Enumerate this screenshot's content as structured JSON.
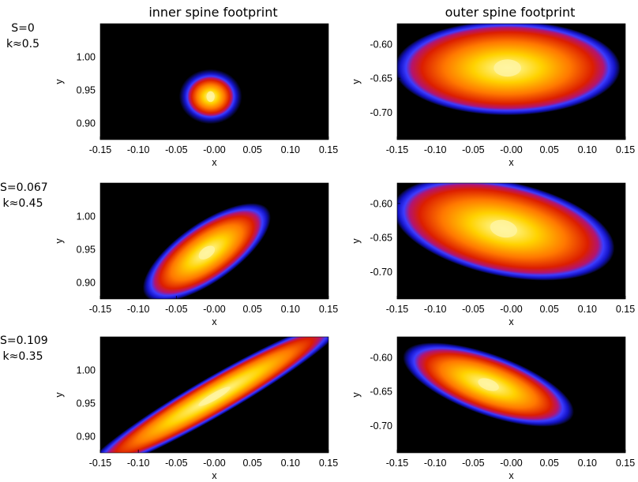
{
  "column_titles": [
    "inner spine footprint",
    "outer spine footprint"
  ],
  "row_labels": [
    {
      "s": "S=0",
      "k": "k≈0.5"
    },
    {
      "s": "S=0.067",
      "k": "k≈0.45"
    },
    {
      "s": "S=0.109",
      "k": "k≈0.35"
    }
  ],
  "chart_data": [
    {
      "type": "heatmap",
      "row": 0,
      "col": 0,
      "title": "inner spine footprint",
      "xlabel": "x",
      "ylabel": "y",
      "xlim": [
        -0.15,
        0.15
      ],
      "ylim": [
        0.875,
        1.05
      ],
      "xticks": [
        "-0.15",
        "-0.10",
        "-0.05",
        "-0.00",
        "0.05",
        "0.10",
        "0.15"
      ],
      "yticks": [
        {
          "v": 0.9,
          "label": "0.90"
        },
        {
          "v": 0.95,
          "label": "0.95"
        },
        {
          "v": 1.0,
          "label": "1.00"
        }
      ],
      "peak": {
        "x": -0.005,
        "y": 0.94
      },
      "shape": {
        "type": "round",
        "angle_deg": 0,
        "extent": [
          0.045,
          0.045
        ]
      },
      "colormap": [
        "#000000",
        "#0a0a60",
        "#1414c8",
        "#3c3cff",
        "#b4146e",
        "#dc1e00",
        "#ff7800",
        "#ffd200",
        "#ffffb4"
      ]
    },
    {
      "type": "heatmap",
      "row": 0,
      "col": 1,
      "title": "outer spine footprint",
      "xlabel": "x",
      "ylabel": "y",
      "xlim": [
        -0.15,
        0.15
      ],
      "ylim": [
        -0.74,
        -0.57
      ],
      "xticks": [
        "-0.15",
        "-0.10",
        "-0.05",
        "-0.00",
        "0.05",
        "0.10",
        "0.15"
      ],
      "yticks": [
        {
          "v": -0.7,
          "label": "-0.70"
        },
        {
          "v": -0.65,
          "label": "-0.65"
        },
        {
          "v": -0.6,
          "label": "-0.60"
        }
      ],
      "peak": {
        "x": -0.005,
        "y": -0.635
      },
      "shape": {
        "type": "wide-oval",
        "angle_deg": 0,
        "extent": [
          0.15,
          0.07
        ]
      },
      "colormap": [
        "#000000",
        "#0a0a60",
        "#1414c8",
        "#3c3cff",
        "#b4146e",
        "#dc1e00",
        "#ff7800",
        "#ffd200",
        "#ffffb4"
      ]
    },
    {
      "type": "heatmap",
      "row": 1,
      "col": 0,
      "title": "",
      "xlabel": "x",
      "ylabel": "y",
      "xlim": [
        -0.15,
        0.15
      ],
      "ylim": [
        0.875,
        1.05
      ],
      "xticks": [
        "-0.15",
        "-0.10",
        "-0.05",
        "-0.00",
        "0.05",
        "0.10",
        "0.15"
      ],
      "yticks": [
        {
          "v": 0.9,
          "label": "0.90"
        },
        {
          "v": 0.95,
          "label": "0.95"
        },
        {
          "v": 1.0,
          "label": "1.00"
        }
      ],
      "peak": {
        "x": -0.01,
        "y": 0.945
      },
      "shape": {
        "type": "tilted-oval",
        "angle_deg": 35,
        "extent": [
          0.1,
          0.045
        ]
      },
      "colormap": [
        "#000000",
        "#0a0a60",
        "#1414c8",
        "#3c3cff",
        "#b4146e",
        "#dc1e00",
        "#ff7800",
        "#ffd200",
        "#ffffb4"
      ]
    },
    {
      "type": "heatmap",
      "row": 1,
      "col": 1,
      "title": "",
      "xlabel": "x",
      "ylabel": "y",
      "xlim": [
        -0.15,
        0.15
      ],
      "ylim": [
        -0.74,
        -0.57
      ],
      "xticks": [
        "-0.15",
        "-0.10",
        "-0.05",
        "-0.00",
        "0.05",
        "0.10",
        "0.15"
      ],
      "yticks": [
        {
          "v": -0.7,
          "label": "-0.70"
        },
        {
          "v": -0.65,
          "label": "-0.65"
        },
        {
          "v": -0.6,
          "label": "-0.60"
        }
      ],
      "peak": {
        "x": -0.01,
        "y": -0.637
      },
      "shape": {
        "type": "wide-oval",
        "angle_deg": -12,
        "extent": [
          0.15,
          0.07
        ]
      },
      "colormap": [
        "#000000",
        "#0a0a60",
        "#1414c8",
        "#3c3cff",
        "#b4146e",
        "#dc1e00",
        "#ff7800",
        "#ffd200",
        "#ffffb4"
      ]
    },
    {
      "type": "heatmap",
      "row": 2,
      "col": 0,
      "title": "",
      "xlabel": "x",
      "ylabel": "y",
      "xlim": [
        -0.15,
        0.15
      ],
      "ylim": [
        0.875,
        1.05
      ],
      "xticks": [
        "-0.15",
        "-0.10",
        "-0.05",
        "-0.00",
        "0.05",
        "0.10",
        "0.15"
      ],
      "yticks": [
        {
          "v": 0.9,
          "label": "0.90"
        },
        {
          "v": 0.95,
          "label": "0.95"
        },
        {
          "v": 1.0,
          "label": "1.00"
        }
      ],
      "peak": {
        "x": 0.0,
        "y": 0.96
      },
      "shape": {
        "type": "elongated-band",
        "angle_deg": 30,
        "extent": [
          0.2,
          0.03
        ]
      },
      "colormap": [
        "#000000",
        "#0a0a60",
        "#1414c8",
        "#3c3cff",
        "#b4146e",
        "#dc1e00",
        "#ff7800",
        "#ffd200",
        "#ffffb4"
      ]
    },
    {
      "type": "heatmap",
      "row": 2,
      "col": 1,
      "title": "",
      "xlabel": "x",
      "ylabel": "y",
      "xlim": [
        -0.15,
        0.15
      ],
      "ylim": [
        -0.74,
        -0.57
      ],
      "xticks": [
        "-0.15",
        "-0.10",
        "-0.05",
        "-0.00",
        "0.05",
        "0.10",
        "0.15"
      ],
      "yticks": [
        {
          "v": -0.7,
          "label": "-0.70"
        },
        {
          "v": -0.65,
          "label": "-0.65"
        },
        {
          "v": -0.6,
          "label": "-0.60"
        }
      ],
      "peak": {
        "x": -0.03,
        "y": -0.64
      },
      "shape": {
        "type": "tilted-band",
        "angle_deg": -20,
        "extent": [
          0.12,
          0.045
        ]
      },
      "colormap": [
        "#000000",
        "#0a0a60",
        "#1414c8",
        "#3c3cff",
        "#b4146e",
        "#dc1e00",
        "#ff7800",
        "#ffd200",
        "#ffffb4"
      ]
    }
  ]
}
